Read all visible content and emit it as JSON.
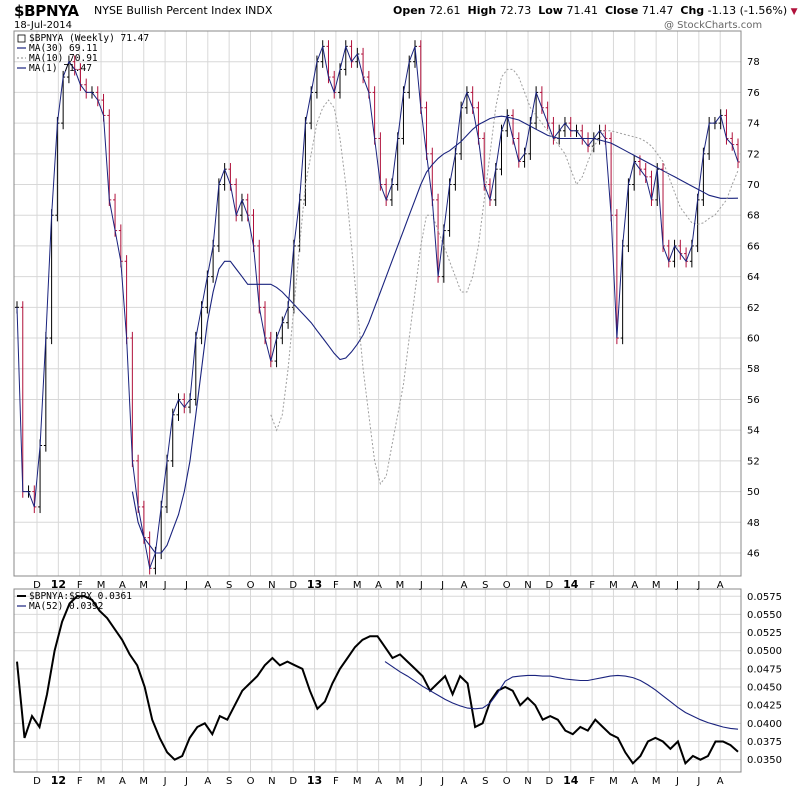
{
  "header": {
    "symbol": "$BPNYA",
    "name": "NYSE Bullish Percent Index",
    "exchange": "INDX",
    "date": "18-Jul-2014",
    "open_label": "Open",
    "open": "72.61",
    "high_label": "High",
    "high": "72.73",
    "low_label": "Low",
    "low": "71.41",
    "close_label": "Close",
    "close": "71.47",
    "chg_label": "Chg",
    "chg": "-1.13 (-1.56%)",
    "credit": "@ StockCharts.com"
  },
  "colors": {
    "up_bar": "#000000",
    "down_bar": "#b0103a",
    "ma30": "#1a237e",
    "ma10": "#9e9e9e",
    "ma1": "#1a237e",
    "ratio_line": "#000000",
    "ratio_ma": "#1a237e",
    "grid": "#d8d8d8",
    "chg_marker": "#b0103a"
  },
  "chart_data": [
    {
      "type": "line",
      "title": "$BPNYA (Weekly) 71.47",
      "x_ticks": [
        "D",
        "12",
        "F",
        "M",
        "A",
        "M",
        "J",
        "J",
        "A",
        "S",
        "O",
        "N",
        "D",
        "13",
        "F",
        "M",
        "A",
        "M",
        "J",
        "J",
        "A",
        "S",
        "O",
        "N",
        "D",
        "14",
        "F",
        "M",
        "A",
        "M",
        "J",
        "J",
        "A"
      ],
      "y_ticks": [
        "46",
        "48",
        "50",
        "52",
        "54",
        "56",
        "58",
        "60",
        "62",
        "64",
        "66",
        "68",
        "70",
        "72",
        "74",
        "76",
        "78"
      ],
      "ylim": [
        44.5,
        80
      ],
      "grid": true,
      "legend_position": "top-left",
      "series": [
        {
          "name": "$BPNYA (Weekly) 71.47",
          "style": "price",
          "values": [
            62,
            50,
            50,
            49,
            53,
            60,
            68,
            74,
            77,
            78,
            77.5,
            76.5,
            76,
            76,
            75.5,
            74.5,
            69,
            67,
            65,
            60,
            52,
            49,
            47,
            45,
            46,
            49,
            52,
            55,
            56,
            55.5,
            56,
            60,
            62,
            64,
            66,
            70,
            71,
            70,
            68,
            69,
            68,
            66,
            62,
            60,
            58.5,
            60,
            61,
            62,
            66,
            69,
            74,
            76,
            78,
            79,
            77,
            76,
            77.5,
            79,
            78,
            78.5,
            77,
            76,
            73,
            70,
            69,
            70,
            73,
            76,
            78,
            79,
            75,
            72,
            69,
            64,
            67,
            70,
            72,
            75,
            76,
            75,
            73,
            70,
            69,
            71,
            73.5,
            74.5,
            73,
            71.5,
            72,
            74,
            76,
            75,
            74,
            73,
            73.5,
            74,
            73.5,
            73.5,
            73,
            72.5,
            73,
            73.5,
            73,
            68,
            60,
            66,
            70,
            71.5,
            71,
            70.5,
            69,
            71,
            66,
            65,
            66,
            65.5,
            65,
            66,
            69,
            72,
            74,
            74,
            74.5,
            73,
            72.6,
            71.47
          ]
        },
        {
          "name": "MA(30) 69.11",
          "style": "ma30",
          "values": [
            50,
            48,
            47,
            46.5,
            46,
            46,
            46.5,
            47.5,
            48.5,
            50,
            52,
            55,
            58,
            61,
            63,
            64.5,
            65,
            65,
            64.5,
            64,
            63.5,
            63.5,
            63.5,
            63.5,
            63.5,
            63.3,
            63,
            62.6,
            62.2,
            61.8,
            61.4,
            61,
            60.5,
            60,
            59.5,
            59,
            58.6,
            58.7,
            59.1,
            59.6,
            60.2,
            61,
            62,
            63,
            64,
            65,
            66,
            67,
            68,
            69,
            70,
            70.8,
            71.3,
            71.7,
            72,
            72.2,
            72.5,
            72.8,
            73.2,
            73.6,
            73.9,
            74.1,
            74.3,
            74.4,
            74.45,
            74.4,
            74.3,
            74.2,
            74,
            73.8,
            73.6,
            73.4,
            73.2,
            73.1,
            73,
            73,
            73,
            73,
            73,
            73,
            73,
            72.9,
            72.8,
            72.7,
            72.5,
            72.3,
            72.1,
            71.9,
            71.7,
            71.5,
            71.3,
            71.1,
            70.9,
            70.7,
            70.5,
            70.3,
            70.1,
            69.9,
            69.7,
            69.5,
            69.3,
            69.2,
            69.1,
            69.1,
            69.1,
            69.11
          ]
        },
        {
          "name": "MA(10) 70.91",
          "style": "ma10",
          "values": [
            55,
            54,
            55,
            58,
            62,
            66,
            70,
            72,
            74,
            75,
            75.5,
            75,
            73,
            70,
            66,
            62,
            58,
            55,
            52,
            50.5,
            51,
            53,
            55,
            57,
            60,
            63,
            66,
            68,
            68,
            67,
            66,
            65,
            64,
            63,
            63,
            64,
            66,
            69,
            72,
            75,
            77,
            77.5,
            77.5,
            77,
            76,
            75,
            74.5,
            74,
            73.5,
            73,
            72.5,
            72,
            71,
            70,
            70.5,
            71.5,
            72.5,
            73,
            73.5,
            73.5,
            73.4,
            73.3,
            73.2,
            73.1,
            73,
            72.8,
            72.5,
            72,
            71.5,
            70.5,
            69.5,
            68.5,
            68,
            67.5,
            67.4,
            67.5,
            67.8,
            68,
            68.5,
            69,
            70,
            70.91
          ]
        },
        {
          "name": "MA(1) 71.47",
          "style": "ma1",
          "values": [
            71.47
          ]
        }
      ]
    },
    {
      "type": "line",
      "title": "$BPNYA:$SPX 0.0361",
      "x_ticks": [
        "D",
        "12",
        "F",
        "M",
        "A",
        "M",
        "J",
        "J",
        "A",
        "S",
        "O",
        "N",
        "D",
        "13",
        "F",
        "M",
        "A",
        "M",
        "J",
        "J",
        "A",
        "S",
        "O",
        "N",
        "D",
        "14",
        "F",
        "M",
        "A",
        "M",
        "J",
        "J",
        "A"
      ],
      "y_ticks": [
        "0.0350",
        "0.0375",
        "0.0400",
        "0.0425",
        "0.0450",
        "0.0475",
        "0.0500",
        "0.0525",
        "0.0550",
        "0.0575"
      ],
      "ylim": [
        0.0333,
        0.0585
      ],
      "grid": true,
      "legend_position": "top-left",
      "series": [
        {
          "name": "$BPNYA:$SPX 0.0361",
          "style": "ratio",
          "values": [
            0.0485,
            0.038,
            0.041,
            0.0395,
            0.044,
            0.05,
            0.054,
            0.0565,
            0.0575,
            0.0575,
            0.057,
            0.0555,
            0.0545,
            0.053,
            0.0515,
            0.0495,
            0.048,
            0.045,
            0.0405,
            0.038,
            0.036,
            0.035,
            0.0355,
            0.038,
            0.0395,
            0.04,
            0.0385,
            0.041,
            0.0405,
            0.0425,
            0.0445,
            0.0455,
            0.0465,
            0.048,
            0.049,
            0.048,
            0.0485,
            0.048,
            0.0475,
            0.0445,
            0.042,
            0.043,
            0.0455,
            0.0475,
            0.049,
            0.0505,
            0.0515,
            0.052,
            0.052,
            0.0505,
            0.049,
            0.0495,
            0.0485,
            0.0475,
            0.0465,
            0.0445,
            0.0455,
            0.0465,
            0.044,
            0.0465,
            0.0455,
            0.0395,
            0.04,
            0.043,
            0.0445,
            0.045,
            0.0445,
            0.0425,
            0.0435,
            0.0425,
            0.0405,
            0.041,
            0.0405,
            0.039,
            0.0385,
            0.0395,
            0.039,
            0.0405,
            0.0395,
            0.0385,
            0.038,
            0.036,
            0.0345,
            0.0355,
            0.0375,
            0.038,
            0.0375,
            0.0365,
            0.0375,
            0.0345,
            0.0355,
            0.035,
            0.0355,
            0.0375,
            0.0375,
            0.037,
            0.0361
          ]
        },
        {
          "name": "MA(52) 0.0392",
          "style": "ratio_ma",
          "values": [
            0.0485,
            0.0478,
            0.0471,
            0.0465,
            0.0458,
            0.0451,
            0.0445,
            0.0439,
            0.0433,
            0.0428,
            0.0424,
            0.0421,
            0.042,
            0.0421,
            0.0428,
            0.0442,
            0.0458,
            0.0464,
            0.0465,
            0.0466,
            0.0466,
            0.0465,
            0.0465,
            0.0463,
            0.0461,
            0.046,
            0.0459,
            0.0459,
            0.0461,
            0.0463,
            0.0465,
            0.0466,
            0.0465,
            0.0463,
            0.0459,
            0.0453,
            0.0446,
            0.0438,
            0.043,
            0.0422,
            0.0415,
            0.041,
            0.0405,
            0.0401,
            0.0398,
            0.0395,
            0.0393,
            0.0392
          ]
        }
      ]
    }
  ]
}
